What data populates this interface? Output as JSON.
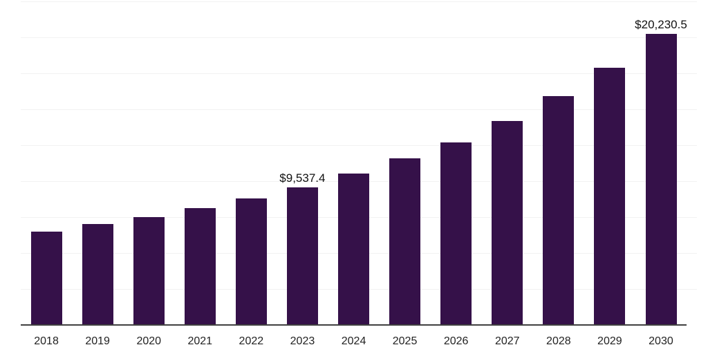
{
  "chart_data": {
    "type": "bar",
    "title": "",
    "xlabel": "",
    "ylabel": "",
    "categories": [
      "2018",
      "2019",
      "2020",
      "2021",
      "2022",
      "2023",
      "2024",
      "2025",
      "2026",
      "2027",
      "2028",
      "2029",
      "2030"
    ],
    "values": [
      6470,
      7000,
      7480,
      8120,
      8790,
      9537.4,
      10525,
      11555,
      12675,
      14165,
      15895,
      17880,
      20230.5
    ],
    "annotations": [
      {
        "category": "2023",
        "text": "$9,537.4"
      },
      {
        "category": "2030",
        "text": "$20,230.5"
      }
    ],
    "ylim": [
      0,
      22500
    ],
    "grid_step": 2500,
    "grid": "horizontal-only",
    "legend": "none",
    "y_axis_ticks_visible": false,
    "colors": {
      "bar": "#351149",
      "gridline": "#f2f2f2",
      "axis_line": "#404040",
      "tick_label": "#222222",
      "value_label": "#111111",
      "background": "#ffffff"
    }
  }
}
